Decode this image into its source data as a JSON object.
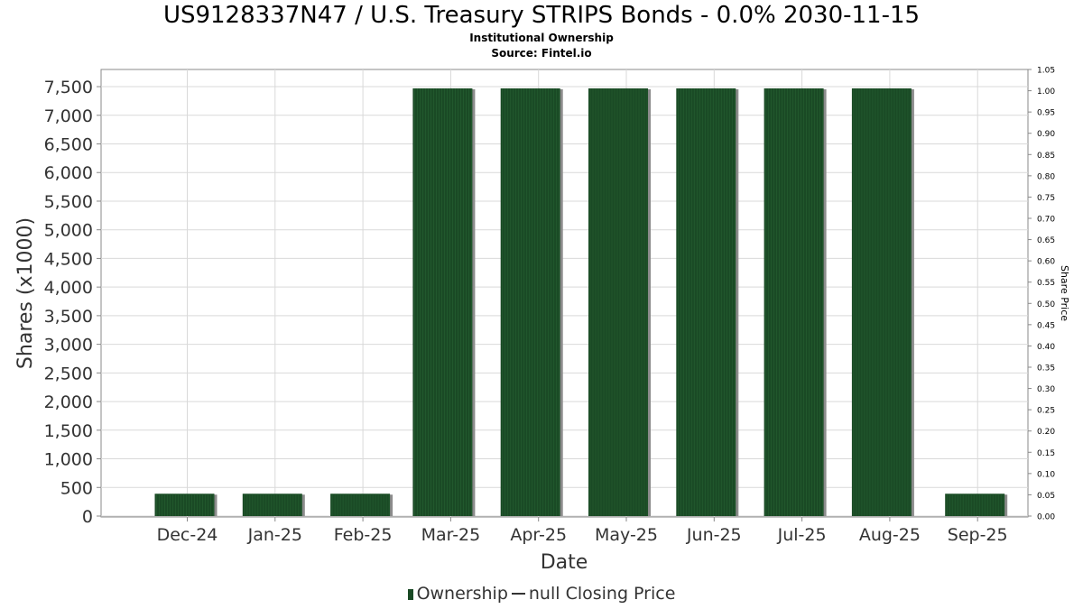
{
  "title": "US9128337N47 / U.S. Treasury STRIPS Bonds - 0.0% 2030-11-15",
  "subtitle": "Institutional Ownership",
  "source": "Source: Fintel.io",
  "colors": {
    "bar": "#1a4a25",
    "bar_shadow": "#8c8c8c",
    "grid": "#d9d9d9",
    "axis": "#888888"
  },
  "chart_data": {
    "type": "bar",
    "categories": [
      "Dec-24",
      "Jan-25",
      "Feb-25",
      "Mar-25",
      "Apr-25",
      "May-25",
      "Jun-25",
      "Jul-25",
      "Aug-25",
      "Sep-25"
    ],
    "series": [
      {
        "name": "Ownership",
        "values": [
          390,
          390,
          390,
          7470,
          7470,
          7470,
          7470,
          7470,
          7470,
          390
        ]
      }
    ],
    "xlabel": "Date",
    "ylabel": "Shares (x1000)",
    "ylim": [
      0,
      7800
    ],
    "yticks": [
      "0",
      "500",
      "1,000",
      "1,500",
      "2,000",
      "2,500",
      "3,000",
      "3,500",
      "4,000",
      "4,500",
      "5,000",
      "5,500",
      "6,000",
      "6,500",
      "7,000",
      "7,500"
    ],
    "y2label": "Share Price",
    "y2lim": [
      0,
      1.05
    ],
    "y2ticks": [
      "0.00",
      "0.05",
      "0.10",
      "0.15",
      "0.20",
      "0.25",
      "0.30",
      "0.35",
      "0.40",
      "0.45",
      "0.50",
      "0.55",
      "0.60",
      "0.65",
      "0.70",
      "0.75",
      "0.80",
      "0.85",
      "0.90",
      "0.95",
      "1.00",
      "1.05"
    ],
    "grid": true,
    "legend_position": "bottom"
  },
  "legend": {
    "ownership": "Ownership",
    "price": "null Closing Price"
  }
}
